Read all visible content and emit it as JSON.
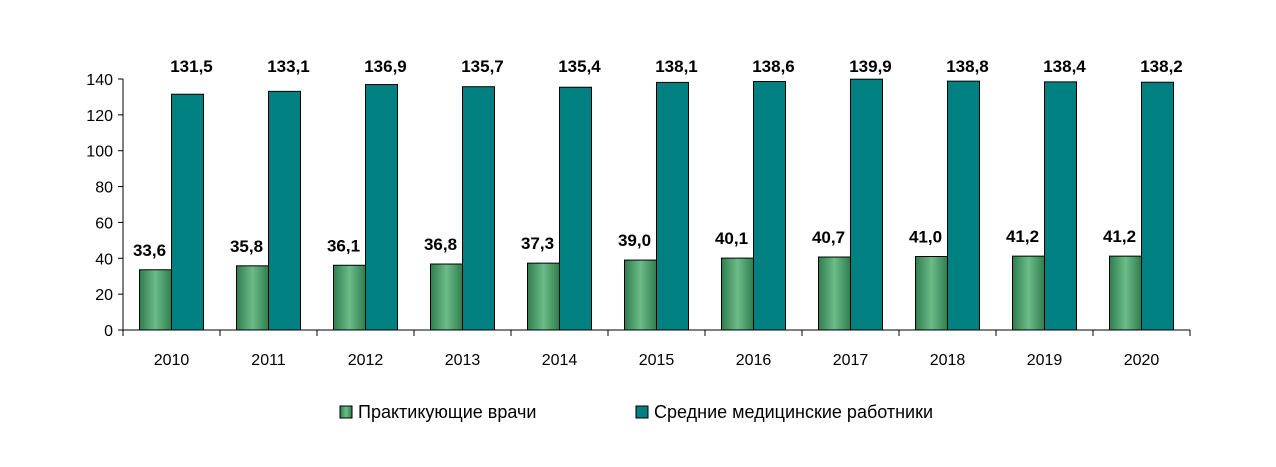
{
  "chart_data": {
    "type": "bar",
    "categories": [
      "2010",
      "2011",
      "2012",
      "2013",
      "2014",
      "2015",
      "2016",
      "2017",
      "2018",
      "2019",
      "2020"
    ],
    "series": [
      {
        "name": "Практикующие врачи",
        "color": "#4f9a6a",
        "values": [
          33.6,
          35.8,
          36.1,
          36.8,
          37.3,
          39.0,
          40.1,
          40.7,
          41.0,
          41.2,
          41.2
        ],
        "labels": [
          "33,6",
          "35,8",
          "36,1",
          "36,8",
          "37,3",
          "39,0",
          "40,1",
          "40,7",
          "41,0",
          "41,2",
          "41,2"
        ]
      },
      {
        "name": "Средние медицинские работники",
        "color": "#008080",
        "values": [
          131.5,
          133.1,
          136.9,
          135.7,
          135.4,
          138.1,
          138.6,
          139.9,
          138.8,
          138.4,
          138.2
        ],
        "labels": [
          "131,5",
          "133,1",
          "136,9",
          "135,7",
          "135,4",
          "138,1",
          "138,6",
          "139,9",
          "138,8",
          "138,4",
          "138,2"
        ]
      }
    ],
    "yticks": [
      "0",
      "20",
      "40",
      "60",
      "80",
      "100",
      "120",
      "140"
    ],
    "ylim": [
      0,
      140
    ],
    "grid": false,
    "legend_position": "bottom"
  }
}
